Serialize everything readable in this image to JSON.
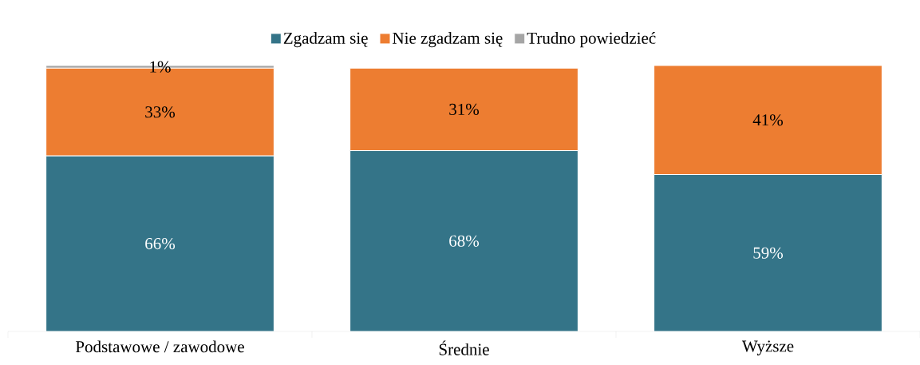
{
  "chart_data": {
    "type": "bar",
    "stacked": true,
    "categories": [
      "Podstawowe / zawodowe",
      "Średnie",
      "Wyższe"
    ],
    "series": [
      {
        "name": "Zgadzam się",
        "color": "#347488",
        "values": [
          66,
          68,
          59
        ],
        "value_labels": [
          "66%",
          "68%",
          "59%"
        ]
      },
      {
        "name": "Nie zgadzam się",
        "color": "#ed7d31",
        "values": [
          33,
          31,
          41
        ],
        "value_labels": [
          "33%",
          "31%",
          "41%"
        ]
      },
      {
        "name": "Trudno powiedzieć",
        "color": "#a5a5a5",
        "values": [
          1,
          null,
          null
        ],
        "value_labels": [
          "1%",
          null,
          null
        ]
      }
    ],
    "ylim": [
      0,
      100
    ],
    "legend": "top"
  }
}
